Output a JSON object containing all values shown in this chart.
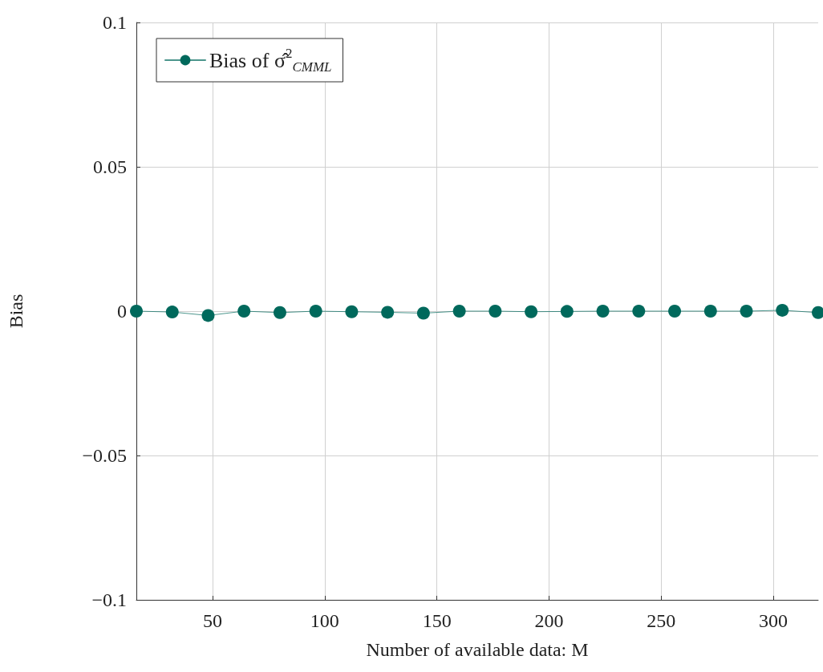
{
  "chart_data": {
    "type": "line",
    "xlabel": "Number of available data: M",
    "ylabel": "Bias",
    "x": [
      16,
      32,
      48,
      64,
      80,
      96,
      112,
      128,
      144,
      160,
      176,
      192,
      208,
      224,
      240,
      256,
      272,
      288,
      304,
      320
    ],
    "series": [
      {
        "name": "Bias of σ̂$^{2}$$_{CMML}$",
        "color": "#00695c",
        "values": [
          0,
          -0.0003,
          -0.0015,
          0,
          -0.0005,
          0,
          -0.0002,
          -0.0004,
          -0.0007,
          0,
          0,
          -0.0002,
          -0.0001,
          0,
          0,
          0,
          0,
          0,
          0.0003,
          -0.0005
        ]
      }
    ],
    "xlim": [
      16,
      320
    ],
    "xticks": [
      50,
      100,
      150,
      200,
      250,
      300
    ],
    "ylim": [
      -0.1,
      0.1
    ],
    "yticks": [
      -0.1,
      -0.05,
      0,
      0.05,
      0.1
    ],
    "grid": true,
    "legend": "top left",
    "marker": "circle",
    "line_style": "solid"
  }
}
